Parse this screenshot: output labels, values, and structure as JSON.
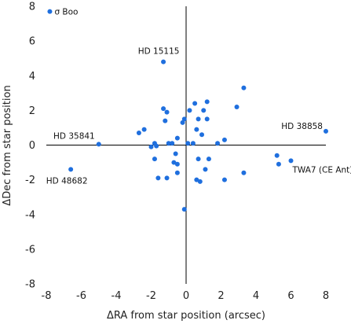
{
  "chart_data": {
    "type": "scatter",
    "title": "",
    "xlabel": "ΔRA from star position (arcsec)",
    "ylabel": "ΔDec from star position",
    "xlim": [
      -8,
      8
    ],
    "ylim": [
      -8,
      8
    ],
    "xticks": [
      -8,
      -6,
      -4,
      -2,
      0,
      2,
      4,
      6,
      8
    ],
    "yticks": [
      -8,
      -6,
      -4,
      -2,
      0,
      2,
      4,
      6,
      8
    ],
    "tick_labels_x": [
      "-8",
      "-6",
      "-4",
      "-2",
      "0",
      "2",
      "4",
      "6",
      "8"
    ],
    "tick_labels_y": [
      "-8",
      "-6",
      "-4",
      "-2",
      "0",
      "2",
      "4",
      "6",
      "8"
    ],
    "grid": false,
    "legend": "none",
    "marker_color": "#1f6fde",
    "axis_color": "#000000",
    "points": [
      {
        "x": -7.8,
        "y": 7.7
      },
      {
        "x": -1.3,
        "y": 4.8
      },
      {
        "x": 8.0,
        "y": 0.8
      },
      {
        "x": -5.0,
        "y": 0.05
      },
      {
        "x": -6.6,
        "y": -1.4
      },
      {
        "x": 6.0,
        "y": -0.9
      },
      {
        "x": -2.7,
        "y": 0.7
      },
      {
        "x": -2.4,
        "y": 0.9
      },
      {
        "x": -2.0,
        "y": -0.1
      },
      {
        "x": -1.8,
        "y": 0.1
      },
      {
        "x": -1.8,
        "y": -0.8
      },
      {
        "x": -1.7,
        "y": -0.05
      },
      {
        "x": -1.6,
        "y": -1.9
      },
      {
        "x": -1.3,
        "y": 2.1
      },
      {
        "x": -1.2,
        "y": 1.4
      },
      {
        "x": -1.1,
        "y": 1.9
      },
      {
        "x": -1.1,
        "y": -1.9
      },
      {
        "x": -1.0,
        "y": 0.1
      },
      {
        "x": -0.8,
        "y": 0.1
      },
      {
        "x": -0.7,
        "y": -1.0
      },
      {
        "x": -0.6,
        "y": -0.5
      },
      {
        "x": -0.5,
        "y": -1.1
      },
      {
        "x": -0.5,
        "y": -1.6
      },
      {
        "x": -0.5,
        "y": 0.4
      },
      {
        "x": -0.2,
        "y": 1.3
      },
      {
        "x": -0.1,
        "y": 1.5
      },
      {
        "x": -0.1,
        "y": -3.7
      },
      {
        "x": 0.1,
        "y": 0.1
      },
      {
        "x": 0.2,
        "y": 2.0
      },
      {
        "x": 0.4,
        "y": 0.1
      },
      {
        "x": 0.5,
        "y": 2.4
      },
      {
        "x": 0.6,
        "y": 0.9
      },
      {
        "x": 0.6,
        "y": -2.0
      },
      {
        "x": 0.7,
        "y": 1.5
      },
      {
        "x": 0.7,
        "y": -0.8
      },
      {
        "x": 0.8,
        "y": -2.1
      },
      {
        "x": 0.9,
        "y": 0.6
      },
      {
        "x": 1.0,
        "y": 2.0
      },
      {
        "x": 1.1,
        "y": -1.4
      },
      {
        "x": 1.2,
        "y": 2.5
      },
      {
        "x": 1.2,
        "y": 1.5
      },
      {
        "x": 1.3,
        "y": -0.8
      },
      {
        "x": 1.8,
        "y": 0.1
      },
      {
        "x": 2.2,
        "y": 0.3
      },
      {
        "x": 2.2,
        "y": -2.0
      },
      {
        "x": 2.9,
        "y": 2.2
      },
      {
        "x": 3.3,
        "y": 3.3
      },
      {
        "x": 3.3,
        "y": -1.6
      },
      {
        "x": 5.2,
        "y": -0.6
      },
      {
        "x": 5.3,
        "y": -1.1
      }
    ],
    "annotations": [
      {
        "text": "σ Boo",
        "x": -7.8,
        "y": 7.7
      },
      {
        "text": "HD 15115",
        "x": -1.3,
        "y": 4.8
      },
      {
        "text": "HD 38858",
        "x": 8.0,
        "y": 0.8
      },
      {
        "text": "HD 35841",
        "x": -5.0,
        "y": 0.05
      },
      {
        "text": "HD 48682",
        "x": -6.6,
        "y": -1.4
      },
      {
        "text": "TWA7 (CE Ant)",
        "x": 6.0,
        "y": -0.9
      }
    ]
  }
}
